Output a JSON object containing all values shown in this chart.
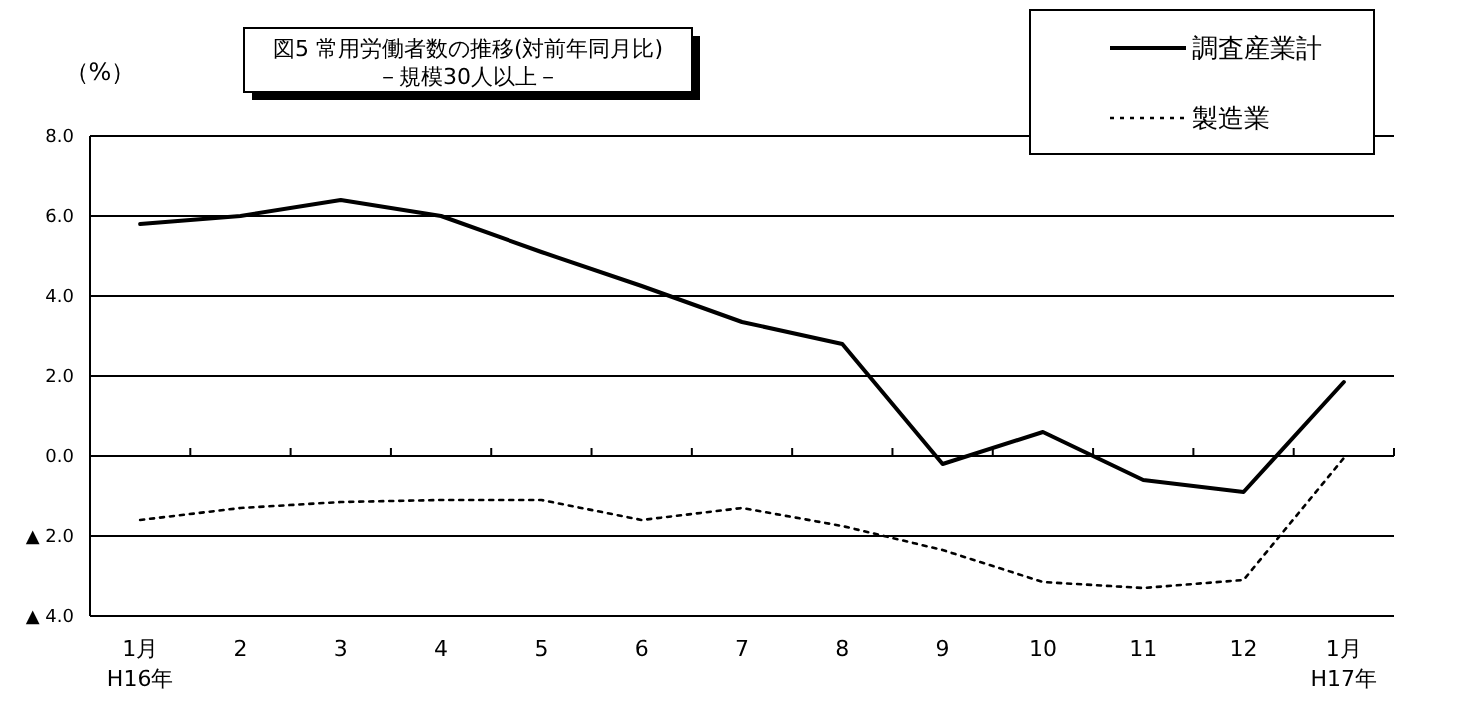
{
  "chart_data": {
    "type": "line",
    "title": "図5  常用労働者数の推移(対前年同月比)",
    "subtitle": "－規模30人以上－",
    "ylabel": "（%）",
    "categories": [
      "1月\nH16年",
      "2",
      "3",
      "4",
      "5",
      "6",
      "7",
      "8",
      "9",
      "10",
      "11",
      "12",
      "1月\nH17年"
    ],
    "series": [
      {
        "name": "調査産業計",
        "color": "#000000",
        "line_style": "solid",
        "values": [
          5.8,
          6.0,
          6.4,
          6.0,
          5.1,
          4.25,
          3.35,
          2.8,
          -0.2,
          0.6,
          -0.6,
          -0.9,
          1.85
        ]
      },
      {
        "name": "製造業",
        "color": "#000000",
        "line_style": "dotted",
        "values": [
          -1.6,
          -1.3,
          -1.15,
          -1.1,
          -1.1,
          -1.6,
          -1.3,
          -1.75,
          -2.35,
          -3.15,
          -3.3,
          -3.1,
          -0.05
        ]
      }
    ],
    "ylim": [
      -4,
      8
    ],
    "yticks": [
      {
        "value": -4,
        "label": "▲ 4.0"
      },
      {
        "value": -2,
        "label": "▲ 2.0"
      },
      {
        "value": 0,
        "label": "0.0"
      },
      {
        "value": 2,
        "label": "2.0"
      },
      {
        "value": 4,
        "label": "4.0"
      },
      {
        "value": 6,
        "label": "6.0"
      },
      {
        "value": 8,
        "label": "8.0"
      }
    ],
    "grid": "y",
    "legend": "top right",
    "marker": "none"
  }
}
